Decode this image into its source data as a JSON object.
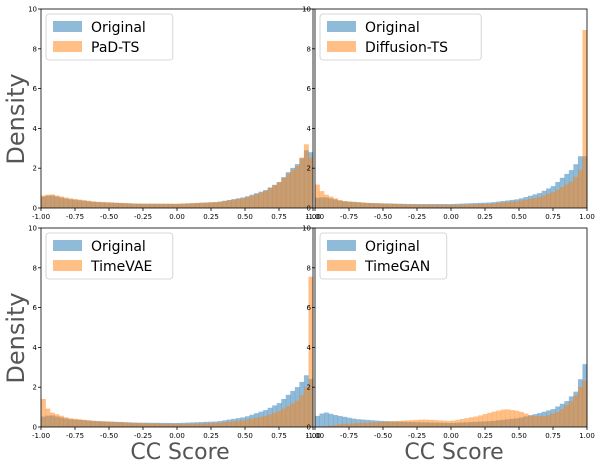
{
  "figure": {
    "ylabel": "Density",
    "xlabel": "CC Score"
  },
  "colors": {
    "original": "#1f77b4",
    "generated": "#ff7f0e",
    "bar_alpha": 0.5
  },
  "chart_data": [
    {
      "type": "histogram",
      "title": "",
      "ylim": [
        0,
        10
      ],
      "xlim": [
        -1.0,
        1.0
      ],
      "xticks": [
        "-1.00",
        "-0.75",
        "-0.50",
        "-0.25",
        "0.00",
        "0.25",
        "0.50",
        "0.75",
        "1.00"
      ],
      "yticks": [
        "0",
        "2",
        "4",
        "6",
        "8",
        "10"
      ],
      "legend_position": "upper left",
      "series": [
        {
          "name": "Original",
          "points": [
            [
              -1.0,
              0.55
            ],
            [
              -0.93,
              0.65
            ],
            [
              -0.8,
              0.45
            ],
            [
              -0.6,
              0.3
            ],
            [
              -0.3,
              0.22
            ],
            [
              0.0,
              0.2
            ],
            [
              0.3,
              0.3
            ],
            [
              0.5,
              0.55
            ],
            [
              0.65,
              0.9
            ],
            [
              0.75,
              1.3
            ],
            [
              0.83,
              1.9
            ],
            [
              0.9,
              2.3
            ],
            [
              0.95,
              2.9
            ],
            [
              0.985,
              2.8
            ],
            [
              1.0,
              2.0
            ]
          ]
        },
        {
          "name": "PaD-TS",
          "points": [
            [
              -1.0,
              0.6
            ],
            [
              -0.93,
              0.7
            ],
            [
              -0.8,
              0.5
            ],
            [
              -0.6,
              0.32
            ],
            [
              -0.3,
              0.22
            ],
            [
              0.0,
              0.22
            ],
            [
              0.3,
              0.3
            ],
            [
              0.5,
              0.5
            ],
            [
              0.65,
              0.85
            ],
            [
              0.75,
              1.3
            ],
            [
              0.83,
              1.8
            ],
            [
              0.9,
              2.2
            ],
            [
              0.95,
              3.2
            ],
            [
              0.985,
              2.5
            ],
            [
              1.0,
              2.0
            ]
          ]
        }
      ]
    },
    {
      "type": "histogram",
      "title": "",
      "ylim": [
        0,
        10
      ],
      "xlim": [
        -1.0,
        1.0
      ],
      "xticks": [
        "-1.00",
        "-0.75",
        "-0.50",
        "-0.25",
        "0.00",
        "0.25",
        "0.50",
        "0.75",
        "1.00"
      ],
      "yticks": [
        "0",
        "2",
        "4",
        "6",
        "8",
        "10"
      ],
      "legend_position": "upper left",
      "series": [
        {
          "name": "Original",
          "points": [
            [
              -1.0,
              0.5
            ],
            [
              -0.93,
              0.55
            ],
            [
              -0.8,
              0.35
            ],
            [
              -0.6,
              0.25
            ],
            [
              -0.3,
              0.2
            ],
            [
              0.0,
              0.2
            ],
            [
              0.3,
              0.28
            ],
            [
              0.5,
              0.45
            ],
            [
              0.65,
              0.75
            ],
            [
              0.75,
              1.1
            ],
            [
              0.83,
              1.6
            ],
            [
              0.9,
              2.0
            ],
            [
              0.95,
              2.6
            ],
            [
              0.985,
              2.6
            ],
            [
              1.0,
              2.0
            ]
          ]
        },
        {
          "name": "Diffusion-TS",
          "points": [
            [
              -1.0,
              1.4
            ],
            [
              -0.97,
              1.0
            ],
            [
              -0.93,
              0.7
            ],
            [
              -0.8,
              0.35
            ],
            [
              -0.6,
              0.25
            ],
            [
              -0.3,
              0.18
            ],
            [
              0.0,
              0.15
            ],
            [
              0.3,
              0.22
            ],
            [
              0.5,
              0.35
            ],
            [
              0.65,
              0.55
            ],
            [
              0.75,
              0.8
            ],
            [
              0.83,
              1.1
            ],
            [
              0.9,
              1.4
            ],
            [
              0.95,
              1.9
            ],
            [
              0.97,
              4.5
            ],
            [
              0.985,
              9.5
            ],
            [
              1.0,
              4.0
            ]
          ]
        }
      ]
    },
    {
      "type": "histogram",
      "title": "",
      "ylim": [
        0,
        10
      ],
      "xlim": [
        -1.0,
        1.0
      ],
      "xticks": [
        "-1.00",
        "-0.75",
        "-0.50",
        "-0.25",
        "0.00",
        "0.25",
        "0.50",
        "0.75",
        "1.00"
      ],
      "yticks": [
        "0",
        "2",
        "4",
        "6",
        "8",
        "10"
      ],
      "legend_position": "upper left",
      "series": [
        {
          "name": "Original",
          "points": [
            [
              -1.0,
              0.5
            ],
            [
              -0.93,
              0.6
            ],
            [
              -0.8,
              0.4
            ],
            [
              -0.6,
              0.3
            ],
            [
              -0.3,
              0.22
            ],
            [
              0.0,
              0.2
            ],
            [
              0.3,
              0.28
            ],
            [
              0.5,
              0.5
            ],
            [
              0.65,
              0.85
            ],
            [
              0.75,
              1.2
            ],
            [
              0.83,
              1.7
            ],
            [
              0.9,
              2.1
            ],
            [
              0.95,
              2.6
            ],
            [
              0.985,
              2.4
            ],
            [
              1.0,
              1.8
            ]
          ]
        },
        {
          "name": "TimeVAE",
          "points": [
            [
              -1.0,
              1.8
            ],
            [
              -0.97,
              1.1
            ],
            [
              -0.93,
              0.75
            ],
            [
              -0.8,
              0.45
            ],
            [
              -0.6,
              0.3
            ],
            [
              -0.3,
              0.2
            ],
            [
              0.0,
              0.15
            ],
            [
              0.3,
              0.2
            ],
            [
              0.5,
              0.35
            ],
            [
              0.65,
              0.55
            ],
            [
              0.75,
              0.8
            ],
            [
              0.83,
              1.1
            ],
            [
              0.9,
              1.4
            ],
            [
              0.95,
              2.0
            ],
            [
              0.97,
              4.0
            ],
            [
              0.985,
              8.0
            ],
            [
              1.0,
              3.5
            ]
          ]
        }
      ]
    },
    {
      "type": "histogram",
      "title": "",
      "ylim": [
        0,
        10
      ],
      "xlim": [
        -1.0,
        1.0
      ],
      "xticks": [
        "-1.00",
        "-0.75",
        "-0.50",
        "-0.25",
        "0.00",
        "0.25",
        "0.50",
        "0.75",
        "1.00"
      ],
      "yticks": [
        "0",
        "2",
        "4",
        "6",
        "8",
        "10"
      ],
      "legend_position": "upper left",
      "series": [
        {
          "name": "Original",
          "points": [
            [
              -1.0,
              0.5
            ],
            [
              -0.93,
              0.75
            ],
            [
              -0.85,
              0.6
            ],
            [
              -0.7,
              0.4
            ],
            [
              -0.5,
              0.3
            ],
            [
              -0.3,
              0.25
            ],
            [
              0.0,
              0.2
            ],
            [
              0.3,
              0.3
            ],
            [
              0.5,
              0.45
            ],
            [
              0.65,
              0.7
            ],
            [
              0.75,
              0.9
            ],
            [
              0.85,
              1.3
            ],
            [
              0.92,
              1.8
            ],
            [
              0.96,
              2.6
            ],
            [
              0.985,
              3.2
            ],
            [
              1.0,
              2.0
            ]
          ]
        },
        {
          "name": "TimeGAN",
          "points": [
            [
              -1.0,
              0.0
            ],
            [
              -0.95,
              0.02
            ],
            [
              -0.9,
              0.05
            ],
            [
              -0.8,
              0.15
            ],
            [
              -0.6,
              0.22
            ],
            [
              -0.4,
              0.3
            ],
            [
              -0.2,
              0.38
            ],
            [
              0.0,
              0.3
            ],
            [
              0.2,
              0.55
            ],
            [
              0.3,
              0.75
            ],
            [
              0.4,
              0.9
            ],
            [
              0.5,
              0.8
            ],
            [
              0.6,
              0.55
            ],
            [
              0.7,
              0.55
            ],
            [
              0.8,
              0.8
            ],
            [
              0.9,
              1.4
            ],
            [
              0.95,
              2.0
            ],
            [
              0.98,
              2.5
            ],
            [
              1.0,
              1.5
            ]
          ]
        }
      ]
    }
  ]
}
